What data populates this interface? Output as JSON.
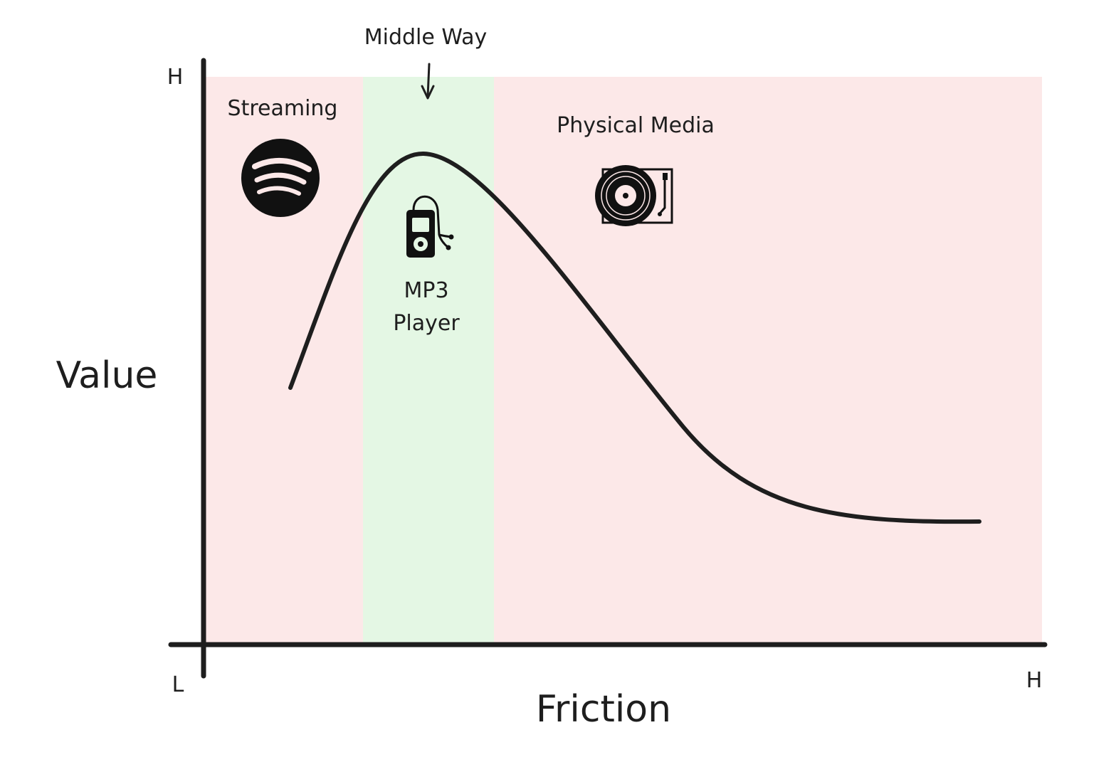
{
  "axes": {
    "y_title": "Value",
    "x_title": "Friction",
    "y_high": "H",
    "origin_low": "L",
    "x_high": "H"
  },
  "regions": {
    "streaming": {
      "label": "Streaming",
      "color": "#fce8e8",
      "icon": "spotify-logo-icon"
    },
    "middle": {
      "label": "Middle Way",
      "color": "#e4f7e4",
      "icon": "mp3-player-icon"
    },
    "physical": {
      "label": "Physical Media",
      "color": "#fce8e8",
      "icon": "record-player-icon"
    }
  },
  "labels": {
    "mp3_line1": "MP3",
    "mp3_line2": "Player"
  },
  "curve": {
    "description_color": "#1e1e1e"
  }
}
